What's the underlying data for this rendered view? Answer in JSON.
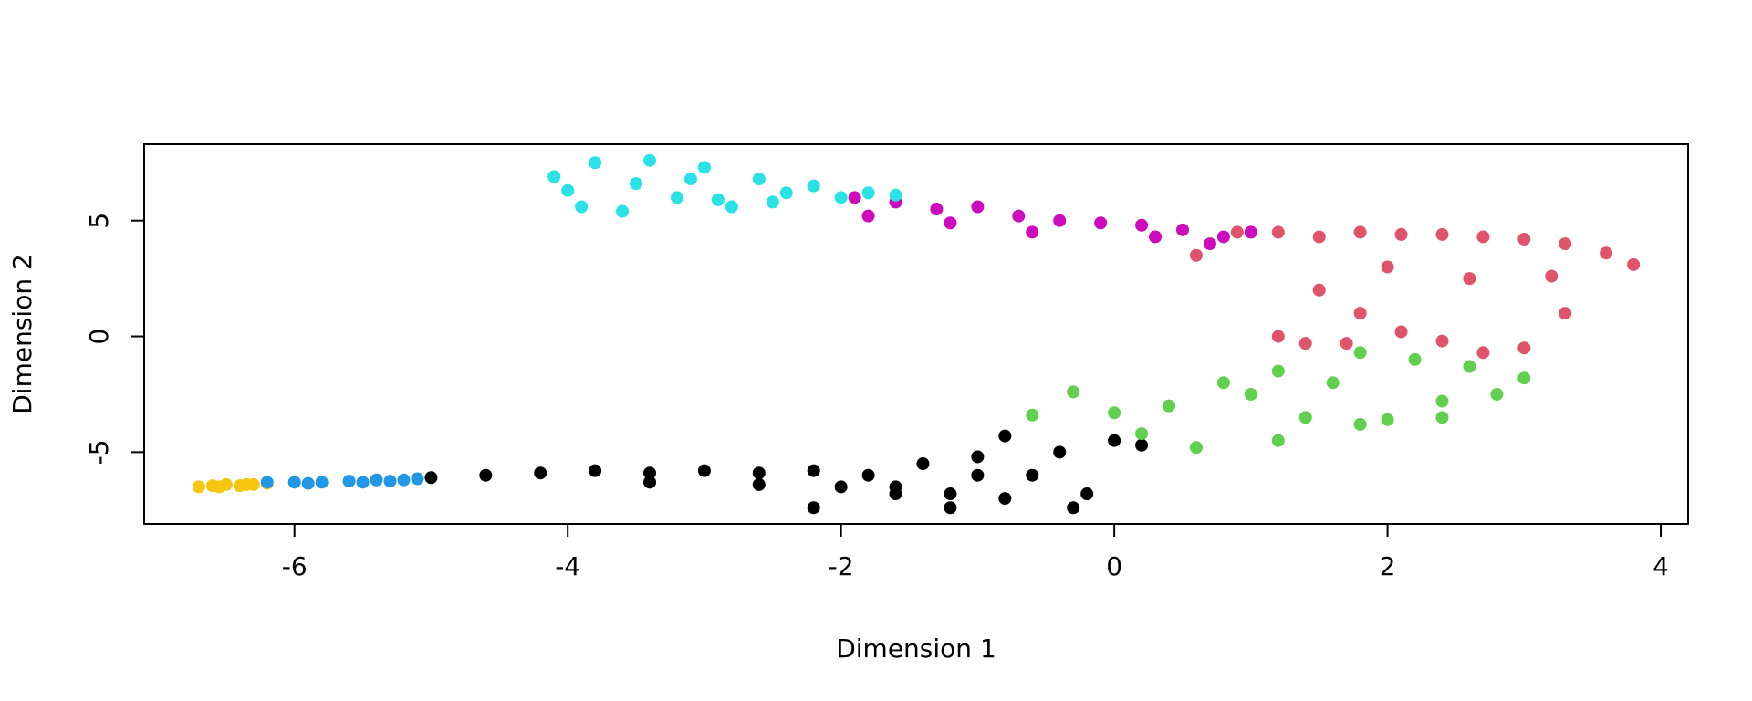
{
  "chart_data": {
    "type": "scatter",
    "xlabel": "Dimension 1",
    "ylabel": "Dimension 2",
    "xlim": [
      -7.1,
      4.2
    ],
    "ylim": [
      -8.1,
      8.3
    ],
    "xticks": [
      -6,
      -4,
      -2,
      0,
      2,
      4
    ],
    "yticks": [
      -5,
      0,
      5
    ],
    "xtick_labels": [
      "-6",
      "-4",
      "-2",
      "0",
      "2",
      "4"
    ],
    "ytick_labels": [
      "-5",
      "0",
      "5"
    ],
    "grid": false,
    "legend": "none",
    "clusters": [
      {
        "color": "#F5C710",
        "points": [
          [
            -6.7,
            -6.5
          ],
          [
            -6.6,
            -6.45
          ],
          [
            -6.5,
            -6.4
          ],
          [
            -6.4,
            -6.45
          ],
          [
            -6.3,
            -6.4
          ],
          [
            -6.2,
            -6.35
          ],
          [
            -6.55,
            -6.5
          ],
          [
            -6.35,
            -6.4
          ]
        ]
      },
      {
        "color": "#2297E6",
        "points": [
          [
            -6.2,
            -6.3
          ],
          [
            -6.0,
            -6.3
          ],
          [
            -5.8,
            -6.3
          ],
          [
            -5.6,
            -6.25
          ],
          [
            -5.4,
            -6.2
          ],
          [
            -5.2,
            -6.2
          ],
          [
            -5.1,
            -6.15
          ],
          [
            -5.9,
            -6.35
          ],
          [
            -5.5,
            -6.3
          ],
          [
            -5.3,
            -6.25
          ]
        ]
      },
      {
        "color": "#000000",
        "points": [
          [
            -5.0,
            -6.1
          ],
          [
            -4.6,
            -6.0
          ],
          [
            -4.2,
            -5.9
          ],
          [
            -3.8,
            -5.8
          ],
          [
            -3.4,
            -5.9
          ],
          [
            -3.0,
            -5.8
          ],
          [
            -2.6,
            -5.9
          ],
          [
            -2.2,
            -5.8
          ],
          [
            -2.0,
            -6.5
          ],
          [
            -1.8,
            -6.0
          ],
          [
            -1.6,
            -6.5
          ],
          [
            -1.4,
            -5.5
          ],
          [
            -1.2,
            -6.8
          ],
          [
            -1.0,
            -5.2
          ],
          [
            -0.8,
            -7.0
          ],
          [
            -0.6,
            -6.0
          ],
          [
            -0.4,
            -5.0
          ],
          [
            -0.2,
            -6.8
          ],
          [
            0.0,
            -4.5
          ],
          [
            0.2,
            -4.7
          ],
          [
            -2.2,
            -7.4
          ],
          [
            -1.2,
            -7.4
          ],
          [
            -0.3,
            -7.4
          ],
          [
            -0.8,
            -4.3
          ],
          [
            -1.0,
            -6.0
          ],
          [
            -1.6,
            -6.8
          ],
          [
            -2.6,
            -6.4
          ],
          [
            -3.4,
            -6.3
          ]
        ]
      },
      {
        "color": "#61D04F",
        "points": [
          [
            -0.6,
            -3.4
          ],
          [
            -0.3,
            -2.4
          ],
          [
            0.0,
            -3.3
          ],
          [
            0.4,
            -3.0
          ],
          [
            0.8,
            -2.0
          ],
          [
            1.0,
            -2.5
          ],
          [
            1.2,
            -1.5
          ],
          [
            1.4,
            -3.5
          ],
          [
            1.6,
            -2.0
          ],
          [
            1.8,
            -0.7
          ],
          [
            2.0,
            -3.6
          ],
          [
            2.2,
            -1.0
          ],
          [
            2.4,
            -2.8
          ],
          [
            2.6,
            -1.3
          ],
          [
            2.8,
            -2.5
          ],
          [
            3.0,
            -1.8
          ],
          [
            0.6,
            -4.8
          ],
          [
            1.2,
            -4.5
          ],
          [
            1.8,
            -3.8
          ],
          [
            2.4,
            -3.5
          ],
          [
            0.2,
            -4.2
          ]
        ]
      },
      {
        "color": "#DF536B",
        "points": [
          [
            0.6,
            3.5
          ],
          [
            0.9,
            4.5
          ],
          [
            1.2,
            4.5
          ],
          [
            1.5,
            4.3
          ],
          [
            1.8,
            4.5
          ],
          [
            2.1,
            4.4
          ],
          [
            2.4,
            4.4
          ],
          [
            2.7,
            4.3
          ],
          [
            3.0,
            4.2
          ],
          [
            3.3,
            4.0
          ],
          [
            3.6,
            3.6
          ],
          [
            3.8,
            3.1
          ],
          [
            1.5,
            2.0
          ],
          [
            1.8,
            1.0
          ],
          [
            2.1,
            0.2
          ],
          [
            2.4,
            -0.2
          ],
          [
            2.7,
            -0.7
          ],
          [
            3.0,
            -0.5
          ],
          [
            3.3,
            1.0
          ],
          [
            1.2,
            0.0
          ],
          [
            1.4,
            -0.3
          ],
          [
            2.0,
            3.0
          ],
          [
            2.6,
            2.5
          ],
          [
            3.2,
            2.6
          ],
          [
            1.7,
            -0.3
          ]
        ]
      },
      {
        "color": "#CD0BBC",
        "points": [
          [
            -1.9,
            6.0
          ],
          [
            -1.6,
            5.8
          ],
          [
            -1.3,
            5.5
          ],
          [
            -1.0,
            5.6
          ],
          [
            -0.7,
            5.2
          ],
          [
            -0.4,
            5.0
          ],
          [
            -0.1,
            4.9
          ],
          [
            0.2,
            4.8
          ],
          [
            0.5,
            4.6
          ],
          [
            0.8,
            4.3
          ],
          [
            1.0,
            4.5
          ],
          [
            -1.8,
            5.2
          ],
          [
            -1.2,
            4.9
          ],
          [
            -0.6,
            4.5
          ],
          [
            0.3,
            4.3
          ],
          [
            0.7,
            4.0
          ]
        ]
      },
      {
        "color": "#28E2E5",
        "points": [
          [
            -4.1,
            6.9
          ],
          [
            -4.0,
            6.3
          ],
          [
            -3.8,
            7.5
          ],
          [
            -3.6,
            5.4
          ],
          [
            -3.4,
            7.6
          ],
          [
            -3.2,
            6.0
          ],
          [
            -3.0,
            7.3
          ],
          [
            -2.8,
            5.6
          ],
          [
            -2.6,
            6.8
          ],
          [
            -2.4,
            6.2
          ],
          [
            -2.2,
            6.5
          ],
          [
            -2.0,
            6.0
          ],
          [
            -1.8,
            6.2
          ],
          [
            -1.6,
            6.1
          ],
          [
            -3.9,
            5.6
          ],
          [
            -3.5,
            6.6
          ],
          [
            -3.1,
            6.8
          ],
          [
            -2.9,
            5.9
          ],
          [
            -2.5,
            5.8
          ]
        ]
      }
    ]
  }
}
